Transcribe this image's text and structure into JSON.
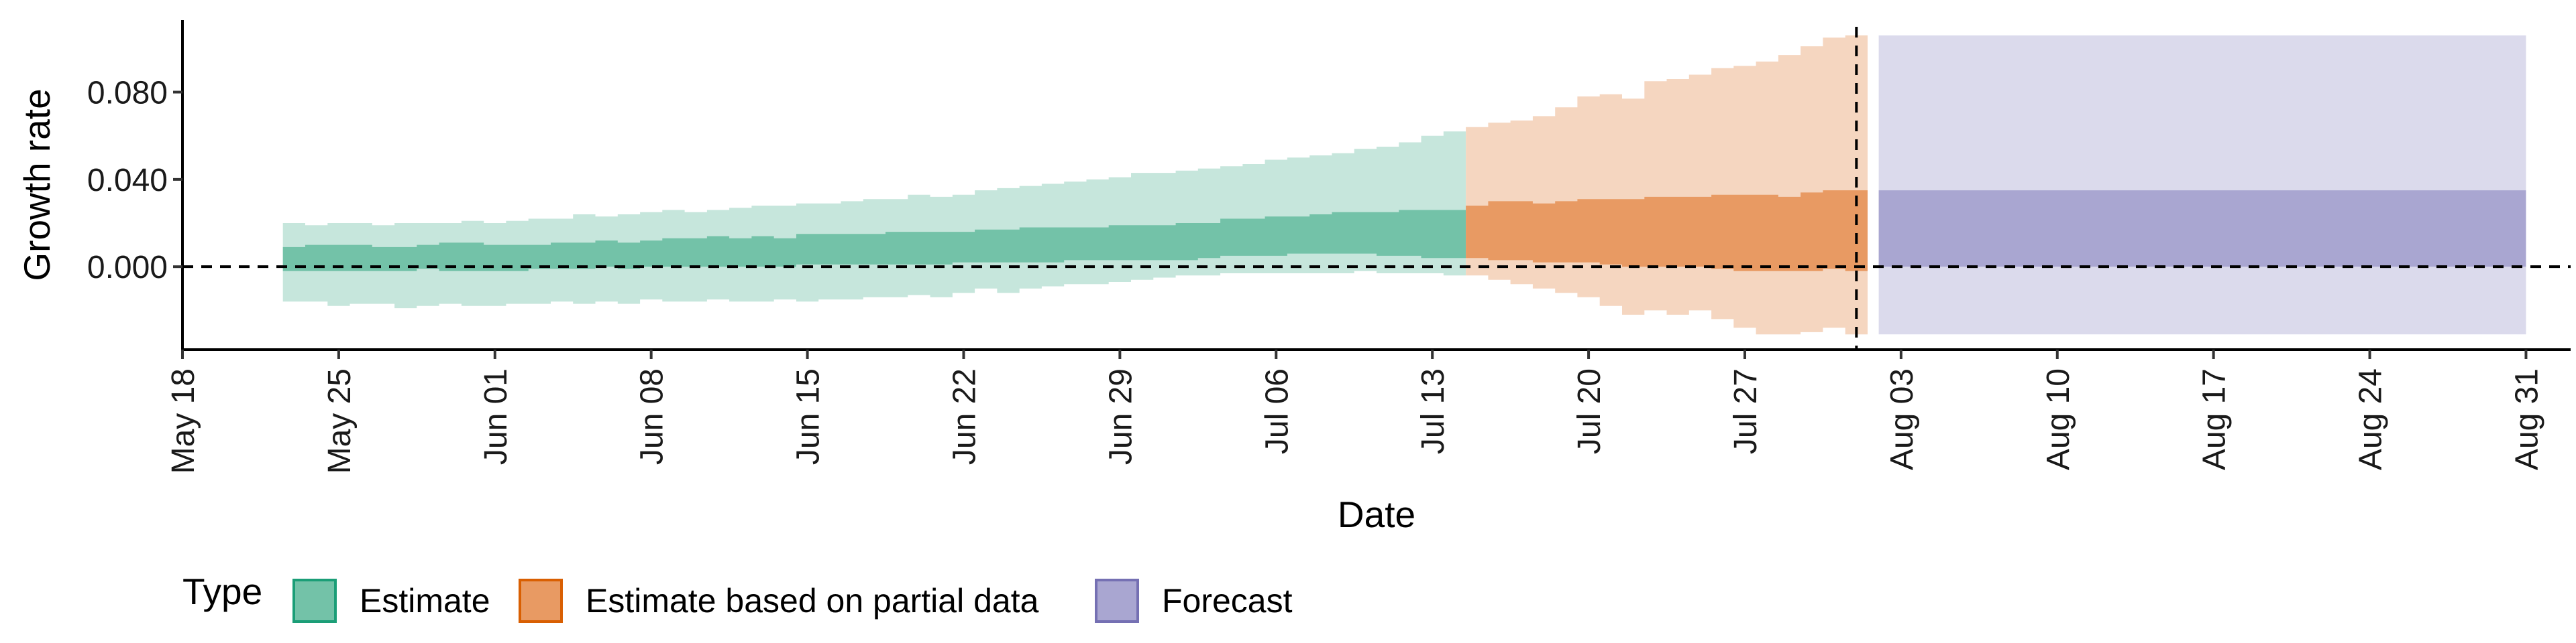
{
  "chart_data": {
    "type": "area",
    "xlabel": "Date",
    "ylabel": "Growth rate",
    "x_type": "date",
    "x_range": [
      "2020-05-18",
      "2020-09-02"
    ],
    "ylim": [
      -0.038,
      0.113
    ],
    "y_ticks": [
      0.0,
      0.04,
      0.08
    ],
    "y_tick_labels": [
      "0.000",
      "0.040",
      "0.080"
    ],
    "x_ticks": [
      "2020-05-18",
      "2020-05-25",
      "2020-06-01",
      "2020-06-08",
      "2020-06-15",
      "2020-06-22",
      "2020-06-29",
      "2020-07-06",
      "2020-07-13",
      "2020-07-20",
      "2020-07-27",
      "2020-08-03",
      "2020-08-10",
      "2020-08-17",
      "2020-08-24",
      "2020-08-31"
    ],
    "x_tick_labels": [
      "May 18",
      "May 25",
      "Jun 01",
      "Jun 08",
      "Jun 15",
      "Jun 22",
      "Jun 29",
      "Jul 06",
      "Jul 13",
      "Jul 20",
      "Jul 27",
      "Aug 03",
      "Aug 10",
      "Aug 17",
      "Aug 24",
      "Aug 31"
    ],
    "grid": false,
    "hline_y": 0.0,
    "vline_x": "2020-08-01",
    "legend": {
      "title": "Type",
      "position": "bottom",
      "entries": [
        {
          "label": "Estimate",
          "fill": "#73c2a8",
          "border": "#1b9e77"
        },
        {
          "label": "Estimate based on partial data",
          "fill": "#e89a63",
          "border": "#d95f02"
        },
        {
          "label": "Forecast",
          "fill": "#a9a6d1",
          "border": "#7570b3"
        }
      ]
    },
    "series": [
      {
        "name": "Estimate",
        "outer_color": "#c6e6dc",
        "inner_color": "#73c2a8",
        "dates": [
          "2020-05-23",
          "2020-05-24",
          "2020-05-25",
          "2020-05-26",
          "2020-05-27",
          "2020-05-28",
          "2020-05-29",
          "2020-05-30",
          "2020-05-31",
          "2020-06-01",
          "2020-06-02",
          "2020-06-03",
          "2020-06-04",
          "2020-06-05",
          "2020-06-06",
          "2020-06-07",
          "2020-06-08",
          "2020-06-09",
          "2020-06-10",
          "2020-06-11",
          "2020-06-12",
          "2020-06-13",
          "2020-06-14",
          "2020-06-15",
          "2020-06-16",
          "2020-06-17",
          "2020-06-18",
          "2020-06-19",
          "2020-06-20",
          "2020-06-21",
          "2020-06-22",
          "2020-06-23",
          "2020-06-24",
          "2020-06-25",
          "2020-06-26",
          "2020-06-27",
          "2020-06-28",
          "2020-06-29",
          "2020-06-30",
          "2020-07-01",
          "2020-07-02",
          "2020-07-03",
          "2020-07-04",
          "2020-07-05",
          "2020-07-06",
          "2020-07-07",
          "2020-07-08",
          "2020-07-09",
          "2020-07-10",
          "2020-07-11",
          "2020-07-12",
          "2020-07-13",
          "2020-07-14"
        ],
        "lower_90": [
          -0.016,
          -0.016,
          -0.018,
          -0.017,
          -0.017,
          -0.019,
          -0.018,
          -0.017,
          -0.018,
          -0.018,
          -0.017,
          -0.017,
          -0.016,
          -0.017,
          -0.016,
          -0.017,
          -0.015,
          -0.016,
          -0.016,
          -0.015,
          -0.016,
          -0.016,
          -0.015,
          -0.016,
          -0.015,
          -0.015,
          -0.014,
          -0.014,
          -0.013,
          -0.014,
          -0.012,
          -0.01,
          -0.012,
          -0.01,
          -0.009,
          -0.008,
          -0.008,
          -0.007,
          -0.006,
          -0.005,
          -0.004,
          -0.004,
          -0.003,
          -0.003,
          -0.003,
          -0.003,
          -0.003,
          -0.003,
          -0.002,
          -0.003,
          -0.003,
          -0.003,
          -0.004
        ],
        "lower_50": [
          -0.002,
          -0.002,
          -0.002,
          -0.002,
          -0.002,
          -0.002,
          -0.001,
          -0.002,
          -0.002,
          -0.002,
          -0.002,
          -0.001,
          -0.001,
          -0.001,
          0.0,
          -0.001,
          0.0,
          0.0,
          0.0,
          0.0,
          0.0,
          0.0,
          0.0,
          0.001,
          0.001,
          0.001,
          0.001,
          0.001,
          0.001,
          0.001,
          0.002,
          0.002,
          0.002,
          0.002,
          0.002,
          0.003,
          0.003,
          0.003,
          0.003,
          0.003,
          0.003,
          0.004,
          0.005,
          0.005,
          0.005,
          0.006,
          0.006,
          0.006,
          0.006,
          0.005,
          0.005,
          0.004,
          0.004
        ],
        "upper_50": [
          0.009,
          0.01,
          0.01,
          0.01,
          0.009,
          0.009,
          0.01,
          0.011,
          0.011,
          0.01,
          0.01,
          0.01,
          0.011,
          0.011,
          0.012,
          0.011,
          0.012,
          0.013,
          0.013,
          0.014,
          0.013,
          0.014,
          0.013,
          0.015,
          0.015,
          0.015,
          0.015,
          0.016,
          0.016,
          0.016,
          0.016,
          0.017,
          0.017,
          0.018,
          0.018,
          0.018,
          0.018,
          0.019,
          0.019,
          0.019,
          0.02,
          0.02,
          0.022,
          0.022,
          0.023,
          0.023,
          0.024,
          0.025,
          0.025,
          0.025,
          0.026,
          0.026,
          0.026
        ],
        "upper_90": [
          0.02,
          0.019,
          0.02,
          0.02,
          0.019,
          0.02,
          0.02,
          0.02,
          0.021,
          0.02,
          0.021,
          0.022,
          0.022,
          0.024,
          0.023,
          0.024,
          0.025,
          0.026,
          0.025,
          0.026,
          0.027,
          0.028,
          0.028,
          0.029,
          0.029,
          0.03,
          0.031,
          0.031,
          0.033,
          0.032,
          0.033,
          0.035,
          0.036,
          0.037,
          0.038,
          0.039,
          0.04,
          0.041,
          0.043,
          0.043,
          0.044,
          0.045,
          0.046,
          0.047,
          0.049,
          0.05,
          0.051,
          0.052,
          0.054,
          0.055,
          0.057,
          0.06,
          0.062
        ]
      },
      {
        "name": "Estimate based on partial data",
        "outer_color": "#f5d6c0",
        "inner_color": "#e89a63",
        "dates": [
          "2020-07-15",
          "2020-07-16",
          "2020-07-17",
          "2020-07-18",
          "2020-07-19",
          "2020-07-20",
          "2020-07-21",
          "2020-07-22",
          "2020-07-23",
          "2020-07-24",
          "2020-07-25",
          "2020-07-26",
          "2020-07-27",
          "2020-07-28",
          "2020-07-29",
          "2020-07-30",
          "2020-07-31",
          "2020-08-01"
        ],
        "lower_90": [
          -0.004,
          -0.006,
          -0.008,
          -0.01,
          -0.012,
          -0.014,
          -0.018,
          -0.022,
          -0.02,
          -0.022,
          -0.02,
          -0.024,
          -0.028,
          -0.031,
          -0.031,
          -0.03,
          -0.028,
          -0.031
        ],
        "lower_50": [
          0.004,
          0.003,
          0.003,
          0.002,
          0.002,
          0.002,
          0.001,
          0.0,
          0.0,
          0.0,
          0.0,
          -0.001,
          -0.002,
          -0.002,
          -0.002,
          -0.002,
          -0.001,
          -0.002
        ],
        "upper_50": [
          0.028,
          0.03,
          0.03,
          0.029,
          0.03,
          0.031,
          0.031,
          0.031,
          0.032,
          0.032,
          0.032,
          0.033,
          0.033,
          0.033,
          0.032,
          0.034,
          0.035,
          0.035
        ],
        "upper_90": [
          0.064,
          0.066,
          0.067,
          0.069,
          0.073,
          0.078,
          0.079,
          0.077,
          0.085,
          0.086,
          0.088,
          0.091,
          0.092,
          0.094,
          0.097,
          0.101,
          0.105,
          0.106
        ]
      },
      {
        "name": "Forecast",
        "outer_color": "#dbdaec",
        "inner_color": "#a9a6d1",
        "x_start": "2020-08-02",
        "x_end": "2020-08-31",
        "lower_90": -0.031,
        "lower_50": 0.0,
        "upper_50": 0.035,
        "upper_90": 0.106
      }
    ]
  }
}
